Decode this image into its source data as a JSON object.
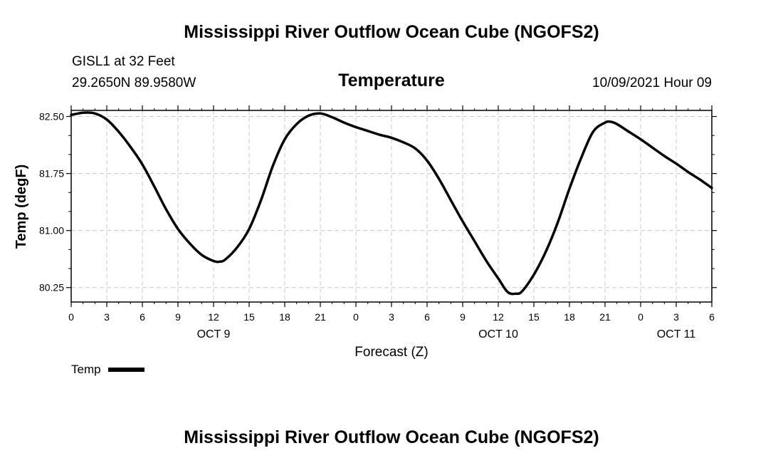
{
  "header": {
    "title_top": "Mississippi River Outflow Ocean Cube (NGOFS2)",
    "station_line": "GISL1 at 32 Feet",
    "coords_line": "29.2650N  89.9580W",
    "parameter_title": "Temperature",
    "datetime": "10/09/2021 Hour 09"
  },
  "footer": {
    "title_bottom": "Mississippi River Outflow Ocean Cube (NGOFS2)"
  },
  "legend": {
    "label": "Temp"
  },
  "colors": {
    "line": "#000000",
    "grid": "#c8c8c8",
    "background": "#ffffff"
  },
  "chart_data": {
    "type": "line",
    "title": "Temperature",
    "xlabel": "Forecast (Z)",
    "ylabel": "Temp (degF)",
    "xlim": [
      0,
      54
    ],
    "ylim": [
      80.06,
      82.58
    ],
    "x_ticks": [
      0,
      3,
      6,
      9,
      12,
      15,
      18,
      21,
      24,
      27,
      30,
      33,
      36,
      39,
      42,
      45,
      48,
      51,
      54
    ],
    "x_tick_labels": [
      "0",
      "3",
      "6",
      "9",
      "12",
      "15",
      "18",
      "21",
      "0",
      "3",
      "6",
      "9",
      "12",
      "15",
      "18",
      "21",
      "0",
      "3",
      "6"
    ],
    "y_ticks": [
      80.25,
      81.0,
      81.75,
      82.5
    ],
    "y_tick_labels": [
      "80.25",
      "81.00",
      "81.75",
      "82.50"
    ],
    "day_labels": [
      {
        "x": 12,
        "label": "OCT 9"
      },
      {
        "x": 36,
        "label": "OCT 10"
      },
      {
        "x": 51,
        "label": "OCT 11"
      }
    ],
    "grid": true,
    "legend_position": "bottom-left",
    "series": [
      {
        "name": "Temp",
        "x": [
          0,
          1,
          2,
          3,
          4,
          5,
          6,
          7,
          8,
          9,
          10,
          11,
          12,
          12.5,
          13,
          14,
          15,
          16,
          17,
          18,
          19,
          20,
          21,
          22,
          23,
          24,
          25,
          26,
          27,
          28,
          29,
          30,
          31,
          32,
          33,
          34,
          35,
          36,
          36.8,
          37.5,
          38,
          39,
          40,
          41,
          42,
          43,
          44,
          45,
          45.5,
          46,
          47,
          48,
          49,
          50,
          51,
          52,
          53,
          54
        ],
        "values": [
          82.52,
          82.55,
          82.54,
          82.46,
          82.3,
          82.1,
          81.87,
          81.58,
          81.28,
          81.02,
          80.83,
          80.68,
          80.6,
          80.59,
          80.62,
          80.78,
          81.02,
          81.4,
          81.85,
          82.2,
          82.4,
          82.51,
          82.54,
          82.49,
          82.42,
          82.36,
          82.31,
          82.26,
          82.22,
          82.16,
          82.08,
          81.92,
          81.68,
          81.4,
          81.12,
          80.86,
          80.6,
          80.37,
          80.19,
          80.17,
          80.2,
          80.42,
          80.72,
          81.1,
          81.55,
          81.96,
          82.3,
          82.42,
          82.43,
          82.4,
          82.3,
          82.2,
          82.09,
          81.98,
          81.88,
          81.77,
          81.67,
          81.56
        ]
      }
    ]
  }
}
